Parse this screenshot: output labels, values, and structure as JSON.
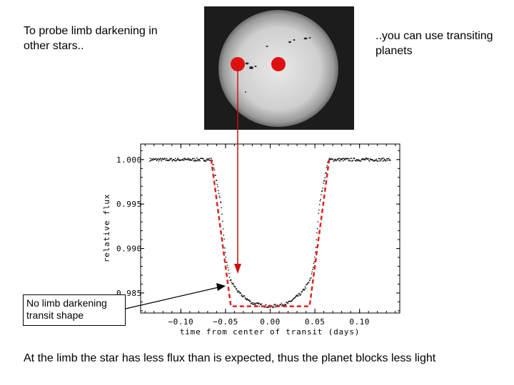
{
  "slide": {
    "intro_left": "To probe limb darkening in other stars..",
    "intro_right": "..you can use transiting planets",
    "caption": "At the limb the star has less flux than is expected, thus the planet blocks less light",
    "callout": "No limb darkening transit shape"
  },
  "colors": {
    "marker": "#e01010",
    "arrow": "#cc1111",
    "model_line": "#dd2222",
    "data_points": "#000000"
  },
  "sun_image": {
    "markers": 2,
    "description_icon": "sun-disk-with-sunspots"
  },
  "chart_data": {
    "type": "scatter",
    "xlabel": "time from center of transit (days)",
    "ylabel": "relative flux",
    "xlim": [
      -0.145,
      0.145
    ],
    "ylim": [
      0.98275,
      1.00175
    ],
    "x_ticks": [
      -0.1,
      -0.05,
      0.0,
      0.05,
      0.1
    ],
    "x_tick_labels": [
      "−0.10",
      "−0.05",
      "0.00",
      "0.05",
      "0.10"
    ],
    "y_ticks": [
      1.0,
      0.995,
      0.99,
      0.985
    ],
    "y_tick_labels": [
      "1.000",
      "0.995",
      "0.990",
      "0.985"
    ],
    "observed_transit": {
      "out_of_transit_flux": 1.0,
      "x_range_left": [
        -0.135,
        -0.058
      ],
      "x_range_right": [
        0.058,
        0.135
      ],
      "ingress_start": -0.065,
      "ingress_end": -0.05,
      "egress_start": 0.05,
      "egress_end": 0.065,
      "curve_points": [
        {
          "x": -0.065,
          "y": 1.0
        },
        {
          "x": -0.055,
          "y": 0.995
        },
        {
          "x": -0.05,
          "y": 0.989
        },
        {
          "x": -0.045,
          "y": 0.9865
        },
        {
          "x": -0.035,
          "y": 0.985
        },
        {
          "x": -0.02,
          "y": 0.98385
        },
        {
          "x": 0.0,
          "y": 0.98345
        },
        {
          "x": 0.02,
          "y": 0.98385
        },
        {
          "x": 0.035,
          "y": 0.985
        },
        {
          "x": 0.045,
          "y": 0.9865
        },
        {
          "x": 0.05,
          "y": 0.989
        },
        {
          "x": 0.055,
          "y": 0.995
        },
        {
          "x": 0.065,
          "y": 1.0
        }
      ]
    },
    "no_limb_darkening_model": {
      "style": "dashed",
      "points": [
        {
          "x": -0.066,
          "y": 1.0
        },
        {
          "x": -0.044,
          "y": 0.9835
        },
        {
          "x": 0.044,
          "y": 0.9835
        },
        {
          "x": 0.066,
          "y": 1.0
        }
      ]
    },
    "grid": false
  }
}
